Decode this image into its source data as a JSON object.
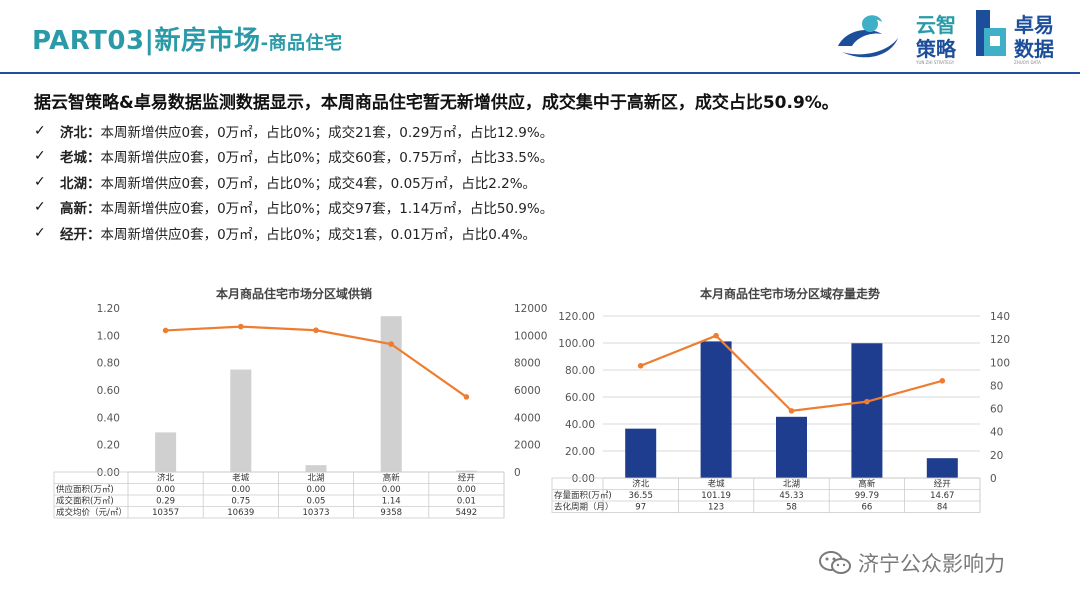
{
  "header": {
    "title_main": "PART03|新房市场",
    "title_sub": "-商品住宅",
    "logo1": {
      "line1": "云智",
      "line2": "策略",
      "tagline": "YUN ZHI STRATEGY"
    },
    "logo2": {
      "line1": "卓易",
      "line2": "数据",
      "tagline": "ZHUOYI DATA"
    }
  },
  "summary": "据云智策略&卓易数据监测数据显示，本周商品住宅暂无新增供应，成交集中于高新区，成交占比50.9%。",
  "bullets": [
    {
      "name": "济北：",
      "text": "本周新增供应0套，0万㎡，占比0%；成交21套，0.29万㎡，占比12.9%。"
    },
    {
      "name": "老城：",
      "text": "本周新增供应0套，0万㎡，占比0%；成交60套，0.75万㎡，占比33.5%。"
    },
    {
      "name": "北湖：",
      "text": "本周新增供应0套，0万㎡，占比0%；成交4套，0.05万㎡，占比2.2%。"
    },
    {
      "name": "高新：",
      "text": "本周新增供应0套，0万㎡，占比0%；成交97套，1.14万㎡，占比50.9%。"
    },
    {
      "name": "经开：",
      "text": "本周新增供应0套，0万㎡，占比0%；成交1套，0.01万㎡，占比0.4%。"
    }
  ],
  "chart_data": [
    {
      "type": "bar",
      "title": "本月商品住宅市场分区域供销",
      "categories": [
        "济北",
        "老城",
        "北湖",
        "高新",
        "经开"
      ],
      "ylim": [
        0,
        1.2
      ],
      "yticks": [
        "0.00",
        "0.20",
        "0.40",
        "0.60",
        "0.80",
        "1.00",
        "1.20"
      ],
      "y2lim": [
        0,
        12000
      ],
      "y2ticks": [
        "0",
        "2000",
        "4000",
        "6000",
        "8000",
        "10000",
        "12000"
      ],
      "series": [
        {
          "name": "供应面积(万㎡)",
          "type": "bar",
          "axis": "left",
          "values": [
            0.0,
            0.0,
            0.0,
            0.0,
            0.0
          ],
          "labels": [
            "0.00",
            "0.00",
            "0.00",
            "0.00",
            "0.00"
          ],
          "color": "#bfbfbf"
        },
        {
          "name": "成交面积(万㎡)",
          "type": "bar",
          "axis": "left",
          "values": [
            0.29,
            0.75,
            0.05,
            1.14,
            0.01
          ],
          "labels": [
            "0.29",
            "0.75",
            "0.05",
            "1.14",
            "0.01"
          ],
          "color": "#d0d0d0"
        },
        {
          "name": "成交均价（元/㎡）",
          "type": "line",
          "axis": "right",
          "values": [
            10357,
            10639,
            10373,
            9358,
            5492
          ],
          "labels": [
            "10357",
            "10639",
            "10373",
            "9358",
            "5492"
          ],
          "color": "#ed7d31"
        }
      ]
    },
    {
      "type": "bar",
      "title": "本月商品住宅市场分区域存量走势",
      "categories": [
        "济北",
        "老城",
        "北湖",
        "高新",
        "经开"
      ],
      "ylim": [
        0,
        120
      ],
      "yticks": [
        "0.00",
        "20.00",
        "40.00",
        "60.00",
        "80.00",
        "100.00",
        "120.00"
      ],
      "y2lim": [
        0,
        140
      ],
      "y2ticks": [
        "0",
        "20",
        "40",
        "60",
        "80",
        "100",
        "120",
        "140"
      ],
      "series": [
        {
          "name": "存量面积(万㎡)",
          "type": "bar",
          "axis": "left",
          "values": [
            36.55,
            101.19,
            45.33,
            99.79,
            14.67
          ],
          "labels": [
            "36.55",
            "101.19",
            "45.33",
            "99.79",
            "14.67"
          ],
          "color": "#1f3d8f"
        },
        {
          "name": "去化周期（月）",
          "type": "line",
          "axis": "right",
          "values": [
            97,
            123,
            58,
            66,
            84
          ],
          "labels": [
            "97",
            "123",
            "58",
            "66",
            "84"
          ],
          "color": "#ed7d31"
        }
      ]
    }
  ],
  "watermark": "济宁公众影响力"
}
